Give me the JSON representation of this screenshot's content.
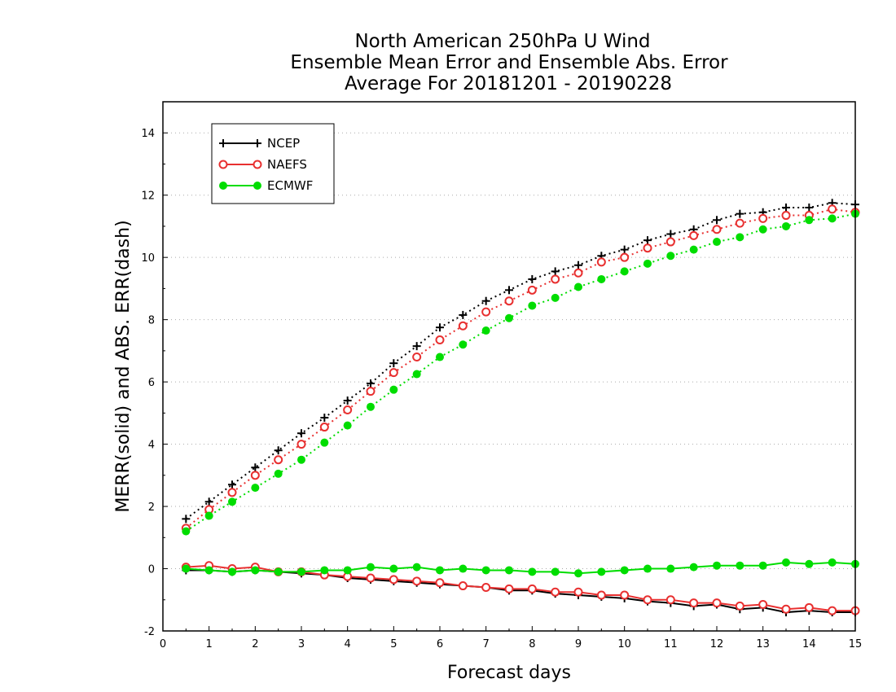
{
  "chart_data": {
    "type": "line",
    "title_lines": [
      "North American 250hPa U Wind",
      "Ensemble Mean Error and Ensemble Abs. Error",
      "Average For 20181201 - 20190228"
    ],
    "xlabel": "Forecast days",
    "ylabel": "MERR(solid) and ABS. ERR(dash)",
    "xlim": [
      0,
      15
    ],
    "ylim": [
      -2,
      15
    ],
    "xticks": [
      "0",
      "1",
      "2",
      "3",
      "4",
      "5",
      "6",
      "7",
      "8",
      "9",
      "10",
      "11",
      "12",
      "13",
      "14",
      "15"
    ],
    "yticks": [
      "-2",
      "0",
      "2",
      "4",
      "6",
      "8",
      "10",
      "12",
      "14"
    ],
    "y_grid": true,
    "legend_position": "top-left",
    "x": [
      0.5,
      1,
      1.5,
      2,
      2.5,
      3,
      3.5,
      4,
      4.5,
      5,
      5.5,
      6,
      6.5,
      7,
      7.5,
      8,
      8.5,
      9,
      9.5,
      10,
      10.5,
      11,
      11.5,
      12,
      12.5,
      13,
      13.5,
      14,
      14.5,
      15
    ],
    "series": [
      {
        "name": "NCEP",
        "color": "#000000",
        "marker": "plus",
        "abs_err": [
          1.6,
          2.15,
          2.7,
          3.25,
          3.8,
          4.35,
          4.85,
          5.4,
          5.95,
          6.6,
          7.15,
          7.75,
          8.15,
          8.6,
          8.95,
          9.3,
          9.55,
          9.75,
          10.05,
          10.25,
          10.55,
          10.75,
          10.9,
          11.2,
          11.4,
          11.45,
          11.6,
          11.6,
          11.75,
          11.7
        ],
        "mean_err": [
          -0.05,
          -0.05,
          -0.1,
          -0.05,
          -0.1,
          -0.15,
          -0.2,
          -0.3,
          -0.35,
          -0.4,
          -0.45,
          -0.5,
          -0.55,
          -0.6,
          -0.7,
          -0.7,
          -0.8,
          -0.85,
          -0.9,
          -0.95,
          -1.05,
          -1.1,
          -1.2,
          -1.15,
          -1.3,
          -1.25,
          -1.4,
          -1.35,
          -1.4,
          -1.4
        ]
      },
      {
        "name": "NAEFS",
        "color": "#e83030",
        "marker": "open-circle",
        "abs_err": [
          1.3,
          1.9,
          2.45,
          3.0,
          3.5,
          4.0,
          4.55,
          5.1,
          5.7,
          6.3,
          6.8,
          7.35,
          7.8,
          8.25,
          8.6,
          8.95,
          9.3,
          9.5,
          9.85,
          10.0,
          10.3,
          10.5,
          10.7,
          10.9,
          11.1,
          11.25,
          11.35,
          11.35,
          11.55,
          11.45
        ],
        "mean_err": [
          0.05,
          0.1,
          0.0,
          0.05,
          -0.1,
          -0.1,
          -0.2,
          -0.25,
          -0.3,
          -0.35,
          -0.4,
          -0.45,
          -0.55,
          -0.6,
          -0.65,
          -0.65,
          -0.75,
          -0.75,
          -0.85,
          -0.85,
          -1.0,
          -1.0,
          -1.1,
          -1.1,
          -1.2,
          -1.15,
          -1.3,
          -1.25,
          -1.35,
          -1.35
        ]
      },
      {
        "name": "ECMWF",
        "color": "#00dd00",
        "marker": "filled-circle",
        "abs_err": [
          1.2,
          1.7,
          2.15,
          2.6,
          3.05,
          3.5,
          4.05,
          4.6,
          5.2,
          5.75,
          6.25,
          6.8,
          7.2,
          7.65,
          8.05,
          8.45,
          8.7,
          9.05,
          9.3,
          9.55,
          9.8,
          10.05,
          10.25,
          10.5,
          10.65,
          10.9,
          11.0,
          11.2,
          11.25,
          11.4
        ],
        "mean_err": [
          0.0,
          -0.05,
          -0.1,
          -0.05,
          -0.1,
          -0.1,
          -0.05,
          -0.05,
          0.05,
          0.0,
          0.05,
          -0.05,
          0.0,
          -0.05,
          -0.05,
          -0.1,
          -0.1,
          -0.15,
          -0.1,
          -0.05,
          0.0,
          0.0,
          0.05,
          0.1,
          0.1,
          0.1,
          0.2,
          0.15,
          0.2,
          0.15
        ]
      }
    ]
  }
}
